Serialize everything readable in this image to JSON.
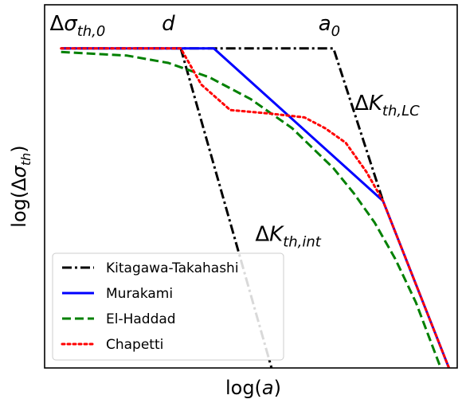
{
  "chart_data": {
    "type": "line",
    "xlabel": "log(a)",
    "ylabel": "log(Δσ_th)",
    "xlim": [
      0,
      10
    ],
    "ylim": [
      0,
      10
    ],
    "grid": false,
    "legend_position": "bottom-left",
    "annotations": [
      {
        "id": "ann-delta-sigma-th0",
        "text": "Δσ_th,0",
        "x": 0.8,
        "y": 9.3
      },
      {
        "id": "ann-d",
        "text": "d",
        "x": 3.0,
        "y": 9.3
      },
      {
        "id": "ann-a0",
        "text": "a_0",
        "x": 6.9,
        "y": 9.3
      },
      {
        "id": "ann-delta-k-lc",
        "text": "ΔK_th,LC",
        "x": 8.3,
        "y": 7.1
      },
      {
        "id": "ann-delta-k-int",
        "text": "ΔK_th,int",
        "x": 5.9,
        "y": 3.5
      }
    ],
    "series": [
      {
        "name": "Kitagawa-Takahashi",
        "color": "#000000",
        "style": "dashdot",
        "segments": [
          [
            [
              0.4,
              8.8
            ],
            [
              7.0,
              8.8
            ],
            [
              8.2,
              4.6
            ]
          ],
          [
            [
              3.3,
              8.8
            ],
            [
              5.5,
              0.0
            ]
          ]
        ]
      },
      {
        "name": "Murakami",
        "color": "#0000ff",
        "style": "solid",
        "points": [
          [
            0.4,
            8.8
          ],
          [
            4.1,
            8.8
          ],
          [
            8.2,
            4.6
          ],
          [
            9.8,
            0.0
          ]
        ]
      },
      {
        "name": "El-Haddad",
        "color": "#008000",
        "style": "dashed",
        "points": [
          [
            0.4,
            8.7
          ],
          [
            2.0,
            8.6
          ],
          [
            3.0,
            8.4
          ],
          [
            4.0,
            8.0
          ],
          [
            5.0,
            7.4
          ],
          [
            6.0,
            6.6
          ],
          [
            7.0,
            5.5
          ],
          [
            7.5,
            4.8
          ],
          [
            8.0,
            4.0
          ],
          [
            8.5,
            3.0
          ],
          [
            9.0,
            1.8
          ],
          [
            9.6,
            0.0
          ]
        ]
      },
      {
        "name": "Chapetti",
        "color": "#ff0000",
        "style": "dotted",
        "points": [
          [
            0.4,
            8.8
          ],
          [
            3.3,
            8.8
          ],
          [
            3.8,
            7.8
          ],
          [
            4.5,
            7.1
          ],
          [
            5.5,
            7.0
          ],
          [
            6.3,
            6.9
          ],
          [
            6.8,
            6.6
          ],
          [
            7.3,
            6.2
          ],
          [
            7.8,
            5.4
          ],
          [
            8.2,
            4.6
          ],
          [
            9.8,
            0.0
          ]
        ]
      }
    ]
  }
}
